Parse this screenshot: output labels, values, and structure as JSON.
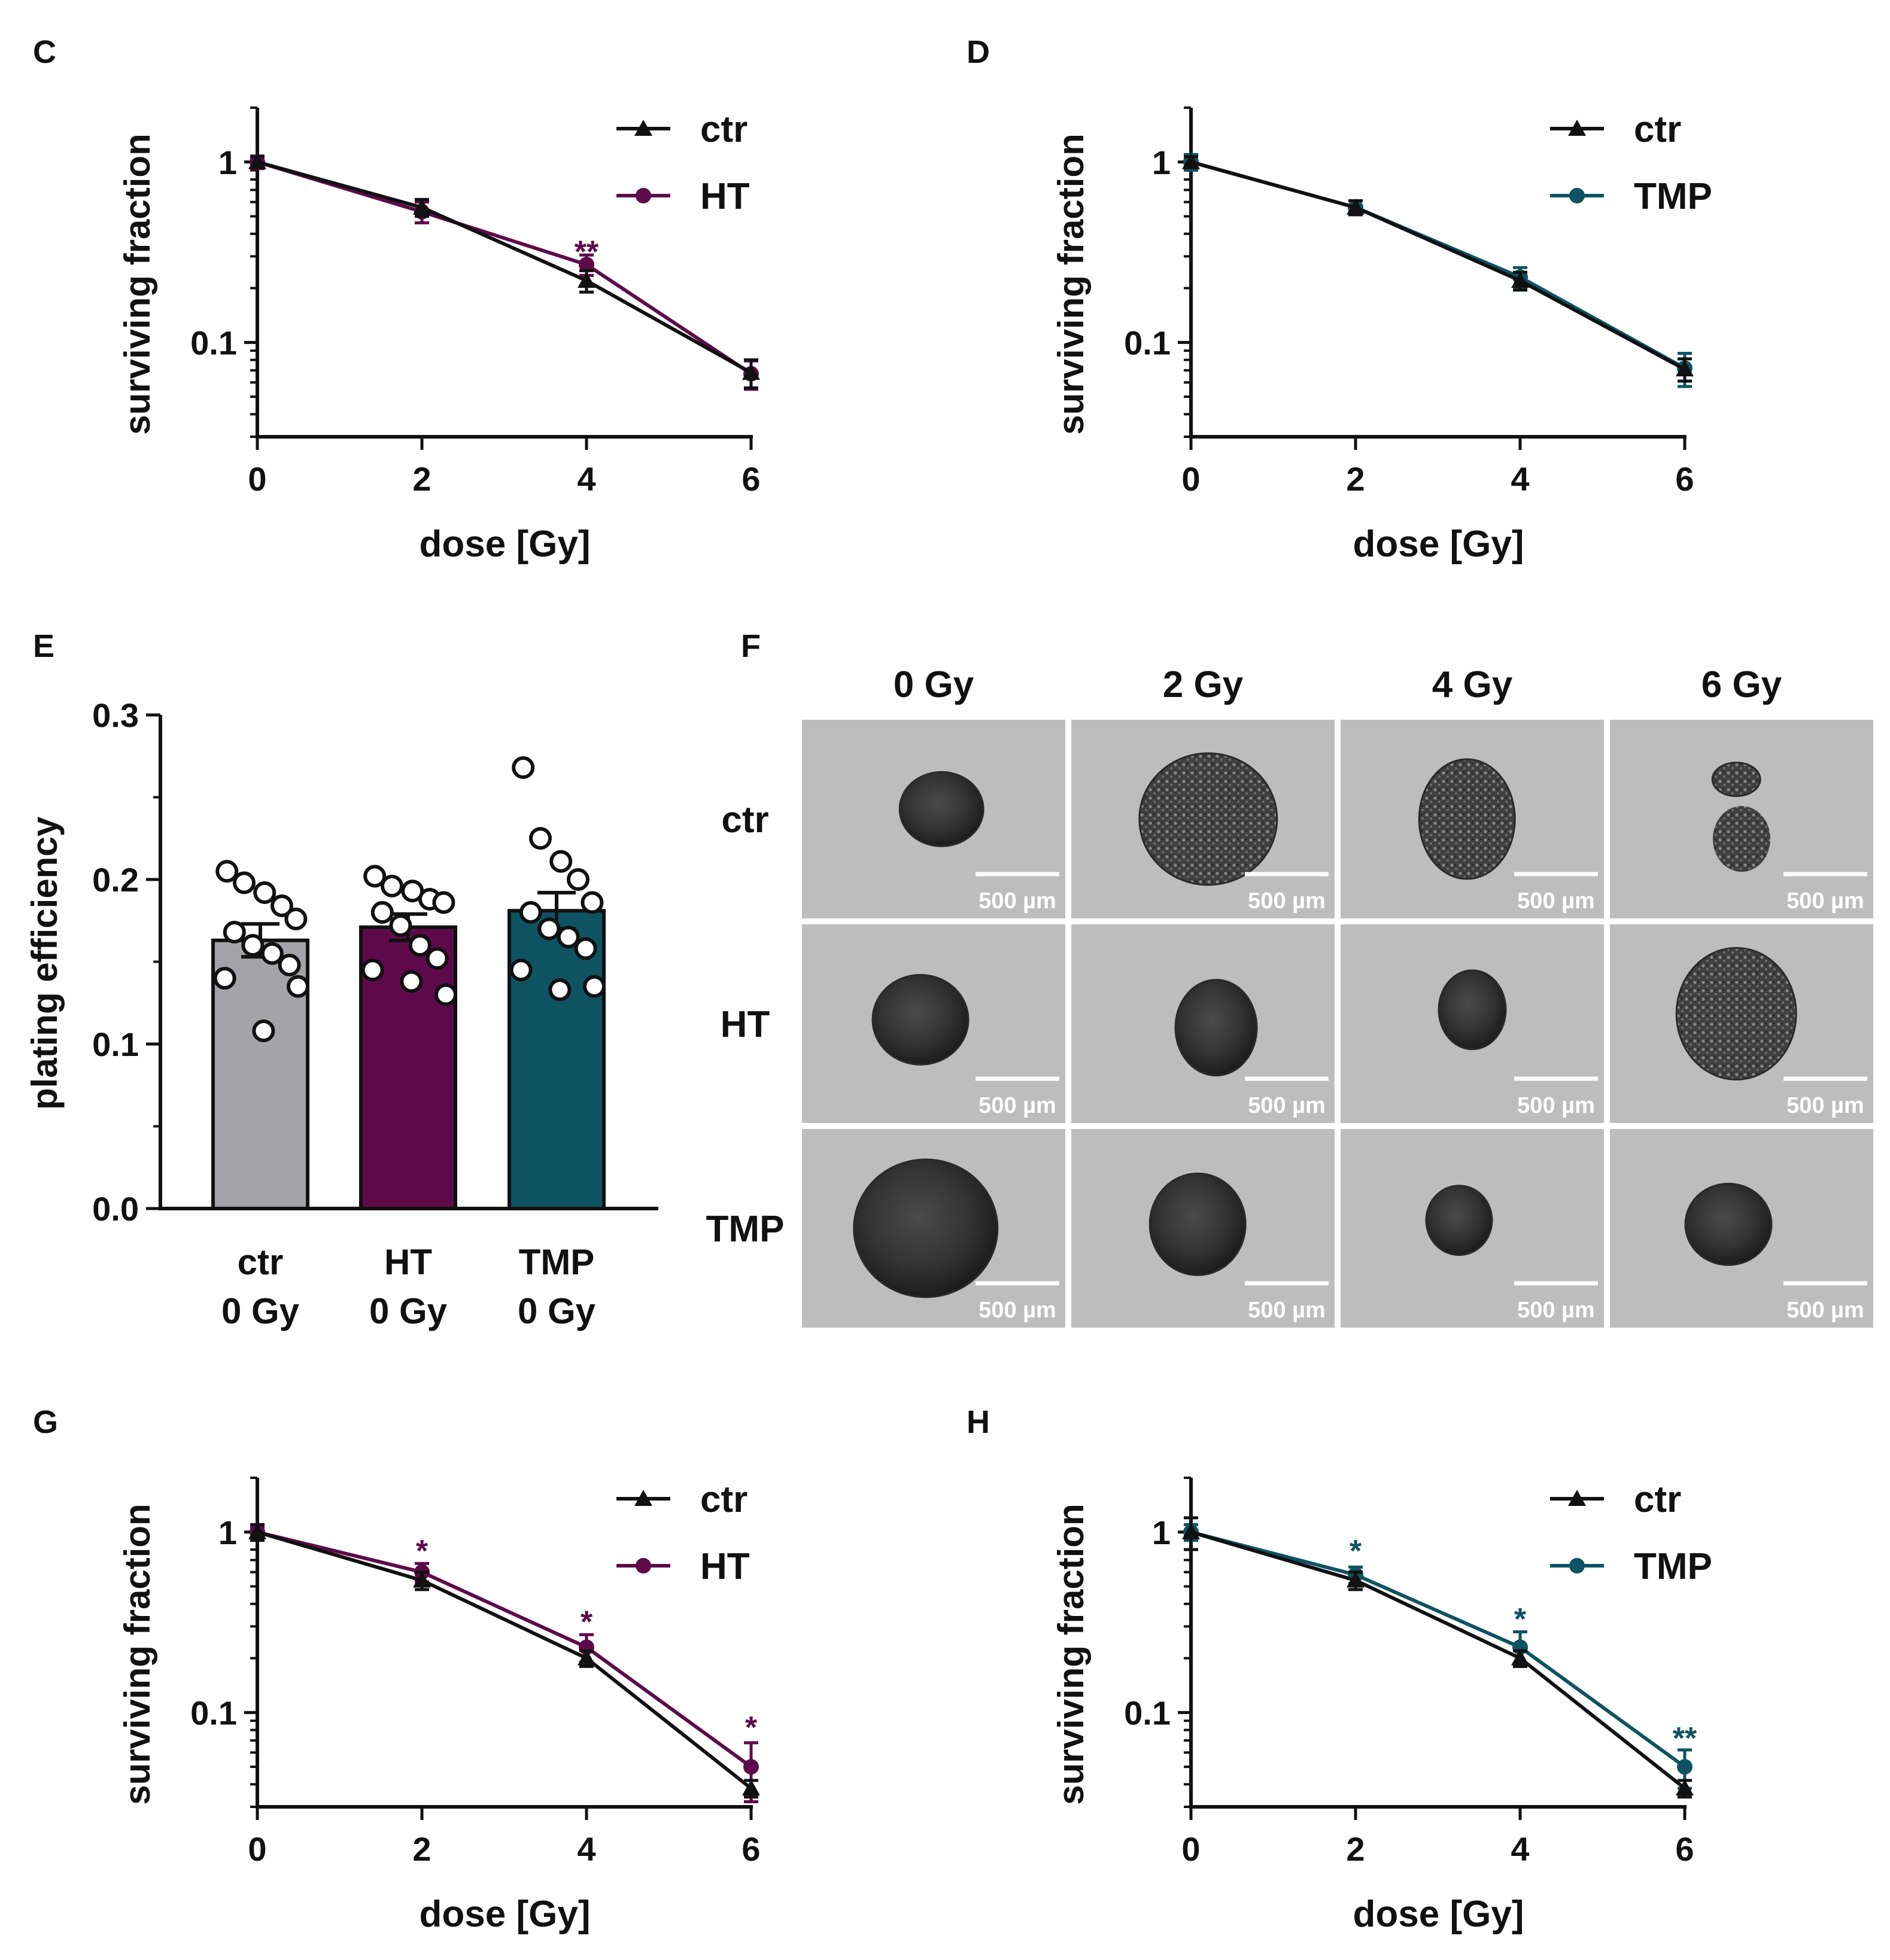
{
  "colors": {
    "ctr": "#111111",
    "HT": "#5e0a4a",
    "TMP": "#0d5362",
    "ctr_bar": "#a3a3a8",
    "axis": "#111111"
  },
  "panel_f": {
    "label": "F",
    "columns": [
      "0 Gy",
      "2 Gy",
      "4 Gy",
      "6 Gy"
    ],
    "rows": [
      "ctr",
      "HT",
      "TMP"
    ],
    "scale_bar": "500 µm"
  },
  "chart_data": [
    {
      "id": "C",
      "type": "line",
      "panel_label": "C",
      "xlabel": "dose [Gy]",
      "ylabel": "surviving fraction",
      "yscale": "log",
      "xlim": [
        0,
        6
      ],
      "ylim": [
        0.03,
        2
      ],
      "xticks": [
        "0",
        "2",
        "4",
        "6"
      ],
      "yticks": [
        "1",
        "0.1"
      ],
      "x": [
        0,
        2,
        4,
        6
      ],
      "series": [
        {
          "name": "ctr",
          "marker": "triangle",
          "color_key": "ctr",
          "values": [
            1.0,
            0.56,
            0.22,
            0.068
          ],
          "errors": [
            0.07,
            0.06,
            0.03,
            0.012
          ]
        },
        {
          "name": "HT",
          "marker": "circle",
          "color_key": "HT",
          "values": [
            1.0,
            0.53,
            0.27,
            0.067
          ],
          "errors": [
            0.08,
            0.07,
            0.035,
            0.012
          ]
        }
      ],
      "annotations": [
        {
          "x": 4,
          "text": "**",
          "color_key": "HT",
          "above": 0.3
        }
      ]
    },
    {
      "id": "D",
      "type": "line",
      "panel_label": "D",
      "xlabel": "dose [Gy]",
      "ylabel": "surviving fraction",
      "yscale": "log",
      "xlim": [
        0,
        6
      ],
      "ylim": [
        0.03,
        2
      ],
      "xticks": [
        "0",
        "2",
        "4",
        "6"
      ],
      "yticks": [
        "1",
        "0.1"
      ],
      "x": [
        0,
        2,
        4,
        6
      ],
      "series": [
        {
          "name": "ctr",
          "marker": "triangle",
          "color_key": "ctr",
          "values": [
            1.0,
            0.56,
            0.22,
            0.071
          ],
          "errors": [
            0.07,
            0.05,
            0.025,
            0.01
          ]
        },
        {
          "name": "TMP",
          "marker": "circle",
          "color_key": "TMP",
          "values": [
            1.0,
            0.56,
            0.23,
            0.072
          ],
          "errors": [
            0.1,
            0.05,
            0.03,
            0.015
          ]
        }
      ],
      "annotations": []
    },
    {
      "id": "E",
      "type": "bar",
      "panel_label": "E",
      "xlabel": "",
      "ylabel": "plating efficiency",
      "ylim": [
        0,
        0.3
      ],
      "yticks": [
        "0.0",
        "0.1",
        "0.2",
        "0.3"
      ],
      "categories": [
        {
          "line1": "ctr",
          "line2": "0 Gy"
        },
        {
          "line1": "HT",
          "line2": "0 Gy"
        },
        {
          "line1": "TMP",
          "line2": "0 Gy"
        }
      ],
      "bar_color_keys": [
        "ctr_bar",
        "HT",
        "TMP"
      ],
      "values": [
        0.163,
        0.171,
        0.181
      ],
      "errors": [
        0.01,
        0.008,
        0.011
      ],
      "points": [
        [
          0.205,
          0.198,
          0.192,
          0.184,
          0.176,
          0.168,
          0.16,
          0.155,
          0.148,
          0.14,
          0.135,
          0.108
        ],
        [
          0.202,
          0.196,
          0.193,
          0.188,
          0.186,
          0.18,
          0.172,
          0.16,
          0.152,
          0.145,
          0.13,
          0.138
        ],
        [
          0.268,
          0.225,
          0.211,
          0.2,
          0.186,
          0.18,
          0.17,
          0.165,
          0.158,
          0.145,
          0.135,
          0.133
        ]
      ]
    },
    {
      "id": "G",
      "type": "line",
      "panel_label": "G",
      "xlabel": "dose [Gy]",
      "ylabel": "surviving fraction",
      "yscale": "log",
      "xlim": [
        0,
        6
      ],
      "ylim": [
        0.03,
        2
      ],
      "xticks": [
        "0",
        "2",
        "4",
        "6"
      ],
      "yticks": [
        "1",
        "0.1"
      ],
      "x": [
        0,
        2,
        4,
        6
      ],
      "series": [
        {
          "name": "ctr",
          "marker": "triangle",
          "color_key": "ctr",
          "values": [
            1.0,
            0.54,
            0.2,
            0.038
          ],
          "errors": [
            0.1,
            0.06,
            0.02,
            0.004
          ]
        },
        {
          "name": "HT",
          "marker": "circle",
          "color_key": "HT",
          "values": [
            1.0,
            0.6,
            0.23,
            0.05
          ],
          "errors": [
            0.07,
            0.07,
            0.04,
            0.018
          ]
        }
      ],
      "annotations": [
        {
          "x": 2,
          "text": "*",
          "color_key": "HT",
          "above": 0.74
        },
        {
          "x": 4,
          "text": "*",
          "color_key": "HT",
          "above": 0.3
        },
        {
          "x": 6,
          "text": "*",
          "color_key": "HT",
          "above": 0.078
        }
      ]
    },
    {
      "id": "H",
      "type": "line",
      "panel_label": "H",
      "xlabel": "dose [Gy]",
      "ylabel": "surviving fraction",
      "yscale": "log",
      "xlim": [
        0,
        6
      ],
      "ylim": [
        0.03,
        2
      ],
      "xticks": [
        "0",
        "2",
        "4",
        "6"
      ],
      "yticks": [
        "1",
        "0.1"
      ],
      "x": [
        0,
        2,
        4,
        6
      ],
      "series": [
        {
          "name": "ctr",
          "marker": "triangle",
          "color_key": "ctr",
          "values": [
            1.0,
            0.54,
            0.2,
            0.038
          ],
          "errors": [
            0.2,
            0.06,
            0.02,
            0.004
          ]
        },
        {
          "name": "TMP",
          "marker": "circle",
          "color_key": "TMP",
          "values": [
            1.0,
            0.58,
            0.23,
            0.05
          ],
          "errors": [
            0.1,
            0.06,
            0.05,
            0.012
          ]
        }
      ],
      "annotations": [
        {
          "x": 2,
          "text": "*",
          "color_key": "TMP",
          "above": 0.74
        },
        {
          "x": 4,
          "text": "*",
          "color_key": "TMP",
          "above": 0.31
        },
        {
          "x": 6,
          "text": "**",
          "color_key": "TMP",
          "above": 0.068
        }
      ]
    }
  ]
}
